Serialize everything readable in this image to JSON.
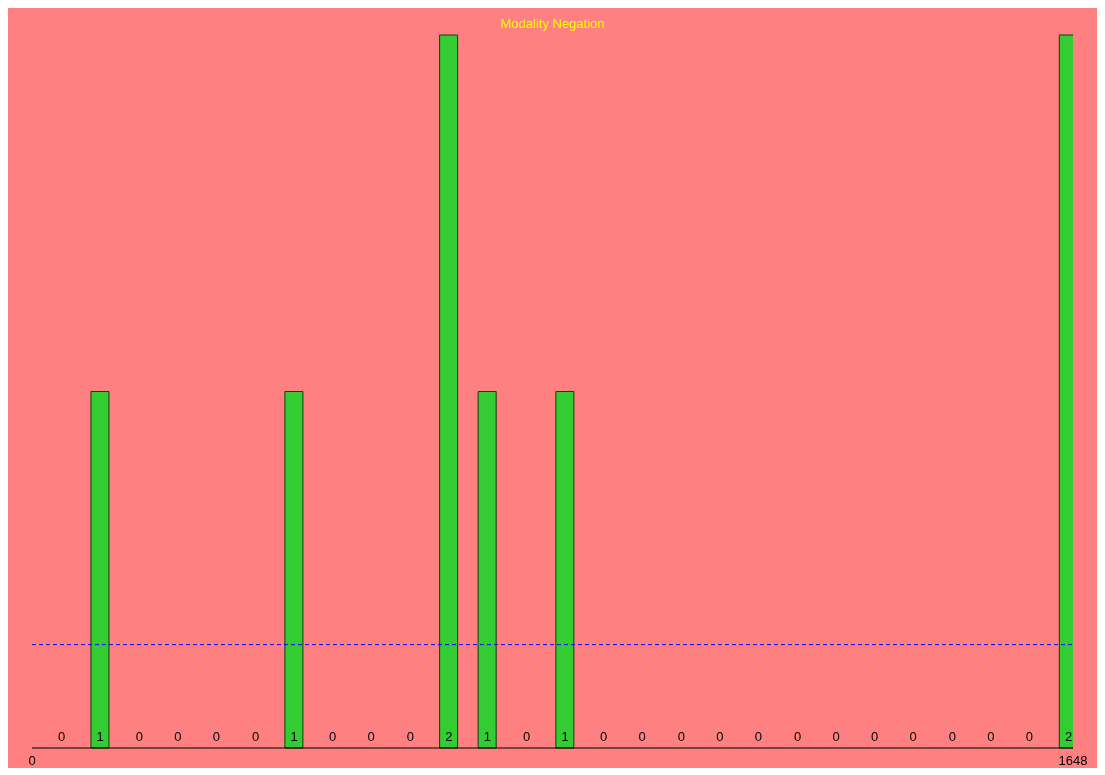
{
  "chart_data": {
    "type": "bar",
    "title": "Modality Negation",
    "x": [
      47,
      108,
      170,
      231,
      292,
      354,
      415,
      476,
      537,
      599,
      660,
      721,
      783,
      844,
      905,
      966,
      1028,
      1089,
      1150,
      1212,
      1273,
      1334,
      1395,
      1457,
      1518,
      1579,
      1641
    ],
    "values": [
      0,
      1,
      0,
      0,
      0,
      0,
      1,
      0,
      0,
      0,
      2,
      1,
      0,
      1,
      0,
      0,
      0,
      0,
      0,
      0,
      0,
      0,
      0,
      0,
      0,
      0,
      2
    ],
    "color": "#33cc33",
    "data_labels": true,
    "xlim": [
      0,
      1648
    ],
    "xticks": [
      0,
      1648
    ],
    "ref_lines": [
      {
        "axis": "y",
        "value": 0.29,
        "color": "#0000ff",
        "line_style": "dashed"
      }
    ],
    "grid": false,
    "legend": false
  }
}
